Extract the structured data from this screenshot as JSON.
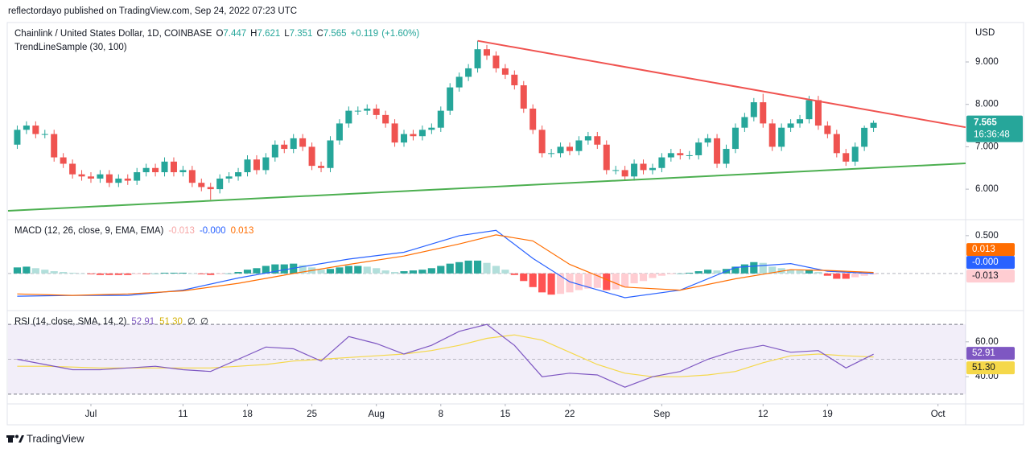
{
  "header": {
    "byline": "reflectordayo published on TradingView.com, Sep 24, 2022 07:23 UTC"
  },
  "footer": {
    "brand": "TradingView"
  },
  "chart_data": [
    {
      "type": "candlestick",
      "title": "Chainlink / United States Dollar, 1D, COINBASE",
      "subtitle": "TrendLineSample (30, 100)",
      "ohlc_prefixes": [
        "O",
        "H",
        "L",
        "C"
      ],
      "change": 0.119,
      "change_label": "+0.119",
      "change_pct": 1.6,
      "change_pct_label": "(+1.60%)",
      "countdown": "16:36:48",
      "y_unit": "USD",
      "up_color": "#26a69a",
      "down_color": "#ef5350",
      "x": [
        "Jun 23",
        "Jun 24",
        "Jun 25",
        "Jun 26",
        "Jun 27",
        "Jun 28",
        "Jun 29",
        "Jun 30",
        "Jul 1",
        "Jul 2",
        "Jul 3",
        "Jul 4",
        "Jul 5",
        "Jul 6",
        "Jul 7",
        "Jul 8",
        "Jul 9",
        "Jul 10",
        "Jul 11",
        "Jul 12",
        "Jul 13",
        "Jul 14",
        "Jul 15",
        "Jul 16",
        "Jul 17",
        "Jul 18",
        "Jul 19",
        "Jul 20",
        "Jul 21",
        "Jul 22",
        "Jul 23",
        "Jul 24",
        "Jul 25",
        "Jul 26",
        "Jul 27",
        "Jul 28",
        "Jul 29",
        "Jul 30",
        "Jul 31",
        "Aug 1",
        "Aug 2",
        "Aug 3",
        "Aug 4",
        "Aug 5",
        "Aug 6",
        "Aug 7",
        "Aug 8",
        "Aug 9",
        "Aug 10",
        "Aug 11",
        "Aug 12",
        "Aug 13",
        "Aug 14",
        "Aug 15",
        "Aug 16",
        "Aug 17",
        "Aug 18",
        "Aug 19",
        "Aug 20",
        "Aug 21",
        "Aug 22",
        "Aug 23",
        "Aug 24",
        "Aug 25",
        "Aug 26",
        "Aug 27",
        "Aug 28",
        "Aug 29",
        "Aug 30",
        "Aug 31",
        "Sep 1",
        "Sep 2",
        "Sep 3",
        "Sep 4",
        "Sep 5",
        "Sep 6",
        "Sep 7",
        "Sep 8",
        "Sep 9",
        "Sep 10",
        "Sep 11",
        "Sep 12",
        "Sep 13",
        "Sep 14",
        "Sep 15",
        "Sep 16",
        "Sep 17",
        "Sep 18",
        "Sep 19",
        "Sep 20",
        "Sep 21",
        "Sep 22",
        "Sep 23",
        "Sep 24"
      ],
      "open": [
        7.05,
        7.4,
        7.5,
        7.3,
        7.3,
        6.75,
        6.6,
        6.35,
        6.3,
        6.25,
        6.35,
        6.15,
        6.25,
        6.2,
        6.4,
        6.5,
        6.4,
        6.65,
        6.4,
        6.45,
        6.15,
        6.05,
        6.0,
        6.25,
        6.3,
        6.4,
        6.7,
        6.45,
        6.75,
        7.05,
        6.95,
        7.2,
        7.0,
        6.55,
        6.5,
        7.15,
        7.55,
        7.85,
        7.85,
        7.9,
        7.75,
        7.55,
        7.1,
        7.3,
        7.25,
        7.4,
        7.45,
        7.85,
        8.4,
        8.65,
        8.85,
        9.3,
        9.15,
        8.85,
        8.7,
        8.45,
        7.9,
        7.4,
        6.85,
        6.85,
        7.0,
        6.9,
        7.15,
        7.25,
        7.05,
        6.45,
        6.45,
        6.3,
        6.6,
        6.45,
        6.5,
        6.75,
        6.85,
        6.8,
        6.8,
        7.1,
        7.2,
        6.6,
        6.95,
        7.45,
        7.7,
        8.05,
        7.55,
        7.0,
        7.45,
        7.55,
        7.65,
        8.1,
        7.5,
        7.3,
        6.85,
        6.65,
        7.0,
        7.447
      ],
      "high": [
        7.5,
        7.6,
        7.6,
        7.4,
        7.4,
        6.85,
        6.7,
        6.45,
        6.4,
        6.45,
        6.45,
        6.35,
        6.35,
        6.5,
        6.6,
        6.6,
        6.75,
        6.75,
        6.55,
        6.55,
        6.25,
        6.15,
        6.35,
        6.4,
        6.5,
        6.8,
        6.8,
        6.85,
        7.15,
        7.15,
        7.3,
        7.3,
        7.1,
        6.65,
        7.25,
        7.65,
        7.95,
        7.95,
        8.0,
        8.0,
        7.85,
        7.65,
        7.4,
        7.4,
        7.5,
        7.55,
        7.95,
        8.5,
        8.75,
        8.95,
        9.5,
        9.4,
        9.25,
        8.95,
        8.8,
        8.55,
        8.0,
        7.5,
        6.95,
        7.1,
        7.1,
        7.25,
        7.35,
        7.35,
        7.15,
        6.55,
        6.55,
        6.7,
        6.7,
        6.6,
        6.85,
        6.95,
        6.95,
        6.9,
        7.2,
        7.3,
        7.3,
        7.05,
        7.55,
        7.8,
        8.15,
        8.25,
        7.65,
        7.55,
        7.65,
        7.75,
        8.2,
        8.2,
        7.6,
        7.4,
        6.95,
        7.1,
        7.5,
        7.621
      ],
      "low": [
        6.95,
        7.3,
        7.2,
        7.2,
        6.65,
        6.5,
        6.25,
        6.2,
        6.15,
        6.15,
        6.05,
        6.05,
        6.1,
        6.1,
        6.3,
        6.3,
        6.3,
        6.3,
        6.3,
        6.05,
        5.95,
        5.75,
        5.9,
        6.15,
        6.2,
        6.3,
        6.35,
        6.35,
        6.65,
        6.85,
        6.85,
        6.9,
        6.45,
        6.4,
        6.4,
        7.05,
        7.45,
        7.75,
        7.75,
        7.65,
        7.45,
        7.0,
        7.0,
        7.15,
        7.15,
        7.3,
        7.35,
        7.75,
        8.3,
        8.55,
        8.75,
        9.05,
        8.75,
        8.6,
        8.35,
        7.8,
        7.3,
        6.75,
        6.75,
        6.75,
        6.8,
        6.8,
        7.05,
        6.95,
        6.35,
        6.35,
        6.2,
        6.2,
        6.35,
        6.35,
        6.4,
        6.65,
        6.7,
        6.7,
        6.7,
        7.0,
        6.5,
        6.5,
        6.85,
        7.35,
        7.6,
        7.45,
        6.9,
        6.9,
        7.35,
        7.45,
        7.55,
        7.4,
        7.2,
        6.75,
        6.55,
        6.55,
        6.9,
        7.351
      ],
      "close": [
        7.4,
        7.5,
        7.3,
        7.3,
        6.75,
        6.6,
        6.35,
        6.3,
        6.25,
        6.35,
        6.15,
        6.25,
        6.2,
        6.4,
        6.5,
        6.4,
        6.65,
        6.4,
        6.45,
        6.15,
        6.05,
        6.0,
        6.25,
        6.3,
        6.4,
        6.7,
        6.45,
        6.75,
        7.05,
        6.95,
        7.2,
        7.0,
        6.55,
        6.5,
        7.15,
        7.55,
        7.85,
        7.85,
        7.9,
        7.75,
        7.55,
        7.1,
        7.3,
        7.25,
        7.4,
        7.45,
        7.85,
        8.4,
        8.65,
        8.85,
        9.3,
        9.15,
        8.85,
        8.7,
        8.45,
        7.9,
        7.4,
        6.85,
        6.85,
        7.0,
        6.9,
        7.15,
        7.25,
        7.05,
        6.45,
        6.45,
        6.3,
        6.6,
        6.45,
        6.5,
        6.75,
        6.85,
        6.8,
        6.8,
        7.1,
        7.2,
        6.6,
        6.95,
        7.45,
        7.7,
        8.05,
        7.55,
        7.0,
        7.45,
        7.55,
        7.65,
        8.1,
        7.5,
        7.3,
        6.85,
        6.65,
        7.0,
        7.447,
        7.565
      ],
      "trendlines": [
        {
          "color": "#f05350",
          "x": [
            "Aug 12",
            "Oct 4"
          ],
          "y": [
            9.5,
            7.46
          ]
        },
        {
          "color": "#4caf50",
          "x": [
            "Jun 22",
            "Oct 4"
          ],
          "y": [
            5.49,
            6.61
          ]
        }
      ],
      "xlim": [
        "Jun 22",
        "Oct 4"
      ],
      "xticks": [
        {
          "value": "Jul 1",
          "label": "Jul"
        },
        {
          "value": "Jul 11",
          "label": "11"
        },
        {
          "value": "Jul 18",
          "label": "18"
        },
        {
          "value": "Jul 25",
          "label": "25"
        },
        {
          "value": "Aug 1",
          "label": "Aug"
        },
        {
          "value": "Aug 8",
          "label": "8"
        },
        {
          "value": "Aug 15",
          "label": "15"
        },
        {
          "value": "Aug 22",
          "label": "22"
        },
        {
          "value": "Sep 1",
          "label": "Sep"
        },
        {
          "value": "Sep 12",
          "label": "12"
        },
        {
          "value": "Sep 19",
          "label": "19"
        },
        {
          "value": "Oct 1",
          "label": "Oct"
        }
      ],
      "ylim": [
        5.3,
        9.93
      ],
      "yticks": [
        {
          "value": 6,
          "label": "6.000"
        },
        {
          "value": 7,
          "label": "7.000"
        },
        {
          "value": 8,
          "label": "8.000"
        },
        {
          "value": 9,
          "label": "9.000"
        }
      ]
    },
    {
      "type": "macd",
      "title": "MACD (12, 26, close, 9, EMA, EMA)",
      "x": [
        "Jun 23",
        "Jun 29",
        "Jul 5",
        "Jul 11",
        "Jul 17",
        "Jul 23",
        "Jul 29",
        "Aug 4",
        "Aug 10",
        "Aug 14",
        "Aug 18",
        "Aug 22",
        "Aug 28",
        "Sep 3",
        "Sep 9",
        "Sep 15",
        "Sep 19",
        "Sep 24"
      ],
      "series": [
        {
          "color": "#2962ff",
          "values": [
            -0.3,
            -0.29,
            -0.29,
            -0.22,
            -0.06,
            0.07,
            0.19,
            0.28,
            0.5,
            0.57,
            0.2,
            -0.11,
            -0.32,
            -0.22,
            0.08,
            0.13,
            0.03,
            -0.0004
          ],
          "last_label": "-0.000"
        },
        {
          "color": "#ff6d00",
          "values": [
            -0.27,
            -0.29,
            -0.27,
            -0.23,
            -0.13,
            0.0,
            0.12,
            0.23,
            0.39,
            0.51,
            0.43,
            0.12,
            -0.18,
            -0.22,
            -0.07,
            0.05,
            0.04,
            0.013
          ]
        }
      ],
      "histogram": {
        "colors": [
          "#26a69a",
          "#b2dfdb",
          "#ff5252",
          "#ffcdd2"
        ],
        "values": [
          0.08,
          0.09,
          0.07,
          0.05,
          0.03,
          0.02,
          0.01,
          0.0,
          -0.01,
          -0.02,
          -0.02,
          -0.02,
          -0.02,
          -0.01,
          -0.01,
          0.0,
          0.01,
          0.01,
          0.01,
          0.0,
          -0.01,
          -0.02,
          -0.01,
          0.0,
          0.02,
          0.05,
          0.07,
          0.1,
          0.12,
          0.12,
          0.13,
          0.11,
          0.08,
          0.05,
          0.06,
          0.08,
          0.1,
          0.1,
          0.09,
          0.07,
          0.04,
          0.02,
          0.03,
          0.04,
          0.05,
          0.07,
          0.1,
          0.13,
          0.15,
          0.17,
          0.17,
          0.14,
          0.1,
          0.05,
          -0.02,
          -0.1,
          -0.18,
          -0.25,
          -0.28,
          -0.27,
          -0.25,
          -0.22,
          -0.2,
          -0.19,
          -0.22,
          -0.21,
          -0.18,
          -0.13,
          -0.1,
          -0.06,
          -0.03,
          -0.01,
          0.0,
          0.01,
          0.03,
          0.05,
          0.04,
          0.06,
          0.09,
          0.12,
          0.15,
          0.14,
          0.09,
          0.07,
          0.05,
          0.04,
          0.05,
          0.02,
          -0.03,
          -0.07,
          -0.07,
          -0.05,
          -0.03,
          -0.013
        ]
      },
      "ylim": [
        -0.48,
        0.69
      ],
      "yticks": [
        {
          "value": 0.5,
          "label": "0.500"
        }
      ],
      "zero_line": 0
    },
    {
      "type": "rsi",
      "title": "RSI (14, close, SMA, 14, 2)",
      "x": [
        "Jun 23",
        "Jun 26",
        "Jun 29",
        "Jul 2",
        "Jul 5",
        "Jul 8",
        "Jul 11",
        "Jul 14",
        "Jul 17",
        "Jul 20",
        "Jul 23",
        "Jul 26",
        "Jul 29",
        "Aug 1",
        "Aug 4",
        "Aug 7",
        "Aug 10",
        "Aug 13",
        "Aug 16",
        "Aug 19",
        "Aug 22",
        "Aug 25",
        "Aug 28",
        "Aug 31",
        "Sep 3",
        "Sep 6",
        "Sep 9",
        "Sep 12",
        "Sep 15",
        "Sep 18",
        "Sep 21",
        "Sep 24"
      ],
      "series": [
        {
          "color": "#7e57c2",
          "values": [
            50,
            47,
            44,
            44,
            45,
            46,
            44,
            43,
            50,
            57,
            56,
            49,
            63,
            59,
            53,
            58,
            66,
            70,
            58,
            40,
            42,
            41,
            34,
            40,
            43,
            50,
            55,
            58,
            54,
            55,
            45,
            52.91
          ]
        },
        {
          "color": "#f5d84a",
          "values": [
            46,
            46,
            45.5,
            45,
            45,
            45,
            45,
            45,
            46,
            47,
            49,
            50,
            51,
            52,
            53,
            55,
            58,
            62,
            64,
            61,
            54,
            47,
            42,
            40,
            40,
            41,
            43,
            48,
            52,
            53,
            52,
            51.3
          ],
          "last_label": "51.30"
        }
      ],
      "null_labels": [
        "∅",
        "∅"
      ],
      "band": [
        30,
        70
      ],
      "band_color": "#7e57c2",
      "midline": 50,
      "ylim": [
        25.3,
        77
      ],
      "yticks": [
        {
          "value": 40,
          "label": "40.00"
        },
        {
          "value": 60,
          "label": "60.00"
        }
      ]
    }
  ]
}
